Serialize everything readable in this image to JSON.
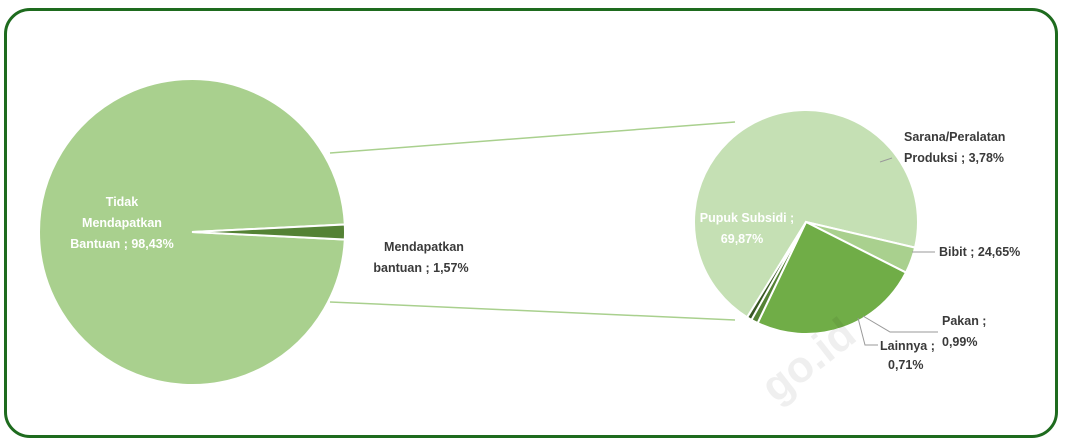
{
  "chart_data": [
    {
      "type": "pie",
      "slices": [
        {
          "label": "Tidak Mendapatkan Bantuan",
          "value": 98.43,
          "text": "98,43%",
          "color": "#a9d08e"
        },
        {
          "label": "Mendapatkan bantuan",
          "value": 1.57,
          "text": "1,57%",
          "color": "#548235"
        }
      ]
    },
    {
      "type": "pie",
      "slices": [
        {
          "label": "Pupuk Subsidi",
          "value": 69.87,
          "text": "69,87%",
          "color": "#c5e0b4"
        },
        {
          "label": "Sarana/Peralatan Produksi",
          "value": 3.78,
          "text": "3,78%",
          "color": "#a9d08e"
        },
        {
          "label": "Bibit",
          "value": 24.65,
          "text": "24,65%",
          "color": "#70ad47"
        },
        {
          "label": "Pakan",
          "value": 0.99,
          "text": "0,99%",
          "color": "#548235"
        },
        {
          "label": "Lainnya",
          "value": 0.71,
          "text": "0,71%",
          "color": "#385723"
        }
      ]
    }
  ],
  "labels": {
    "tidak_1": "Tidak",
    "tidak_2": "Mendapatkan",
    "tidak_3": "Bantuan ; 98,43%",
    "mendapat_1": "Mendapatkan",
    "mendapat_2": "bantuan ; 1,57%",
    "pupuk_1": "Pupuk Subsidi ;",
    "pupuk_2": "69,87%",
    "sarana_1": "Sarana/Peralatan",
    "sarana_2": "Produksi ; 3,78%",
    "bibit": "Bibit ; 24,65%",
    "pakan_1": "Pakan ;",
    "pakan_2": "0,99%",
    "lainnya_1": "Lainnya ;",
    "lainnya_2": "0,71%"
  },
  "watermark": "go.id",
  "colors": {
    "frame": "#1e6b1e",
    "connector": "#a9d08e",
    "leader": "#9a9a9a"
  }
}
